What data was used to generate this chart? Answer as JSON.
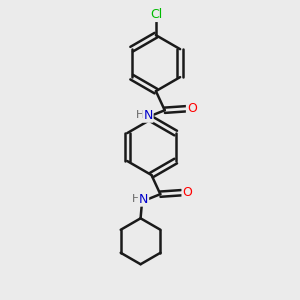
{
  "bg_color": "#ebebeb",
  "atom_colors": {
    "C": "#000000",
    "N": "#0000cc",
    "O": "#ff0000",
    "Cl": "#00bb00",
    "H": "#666666"
  },
  "bond_color": "#1a1a1a",
  "bond_width": 1.8,
  "font_size_atom": 8.5,
  "figsize": [
    3.0,
    3.0
  ],
  "dpi": 100
}
